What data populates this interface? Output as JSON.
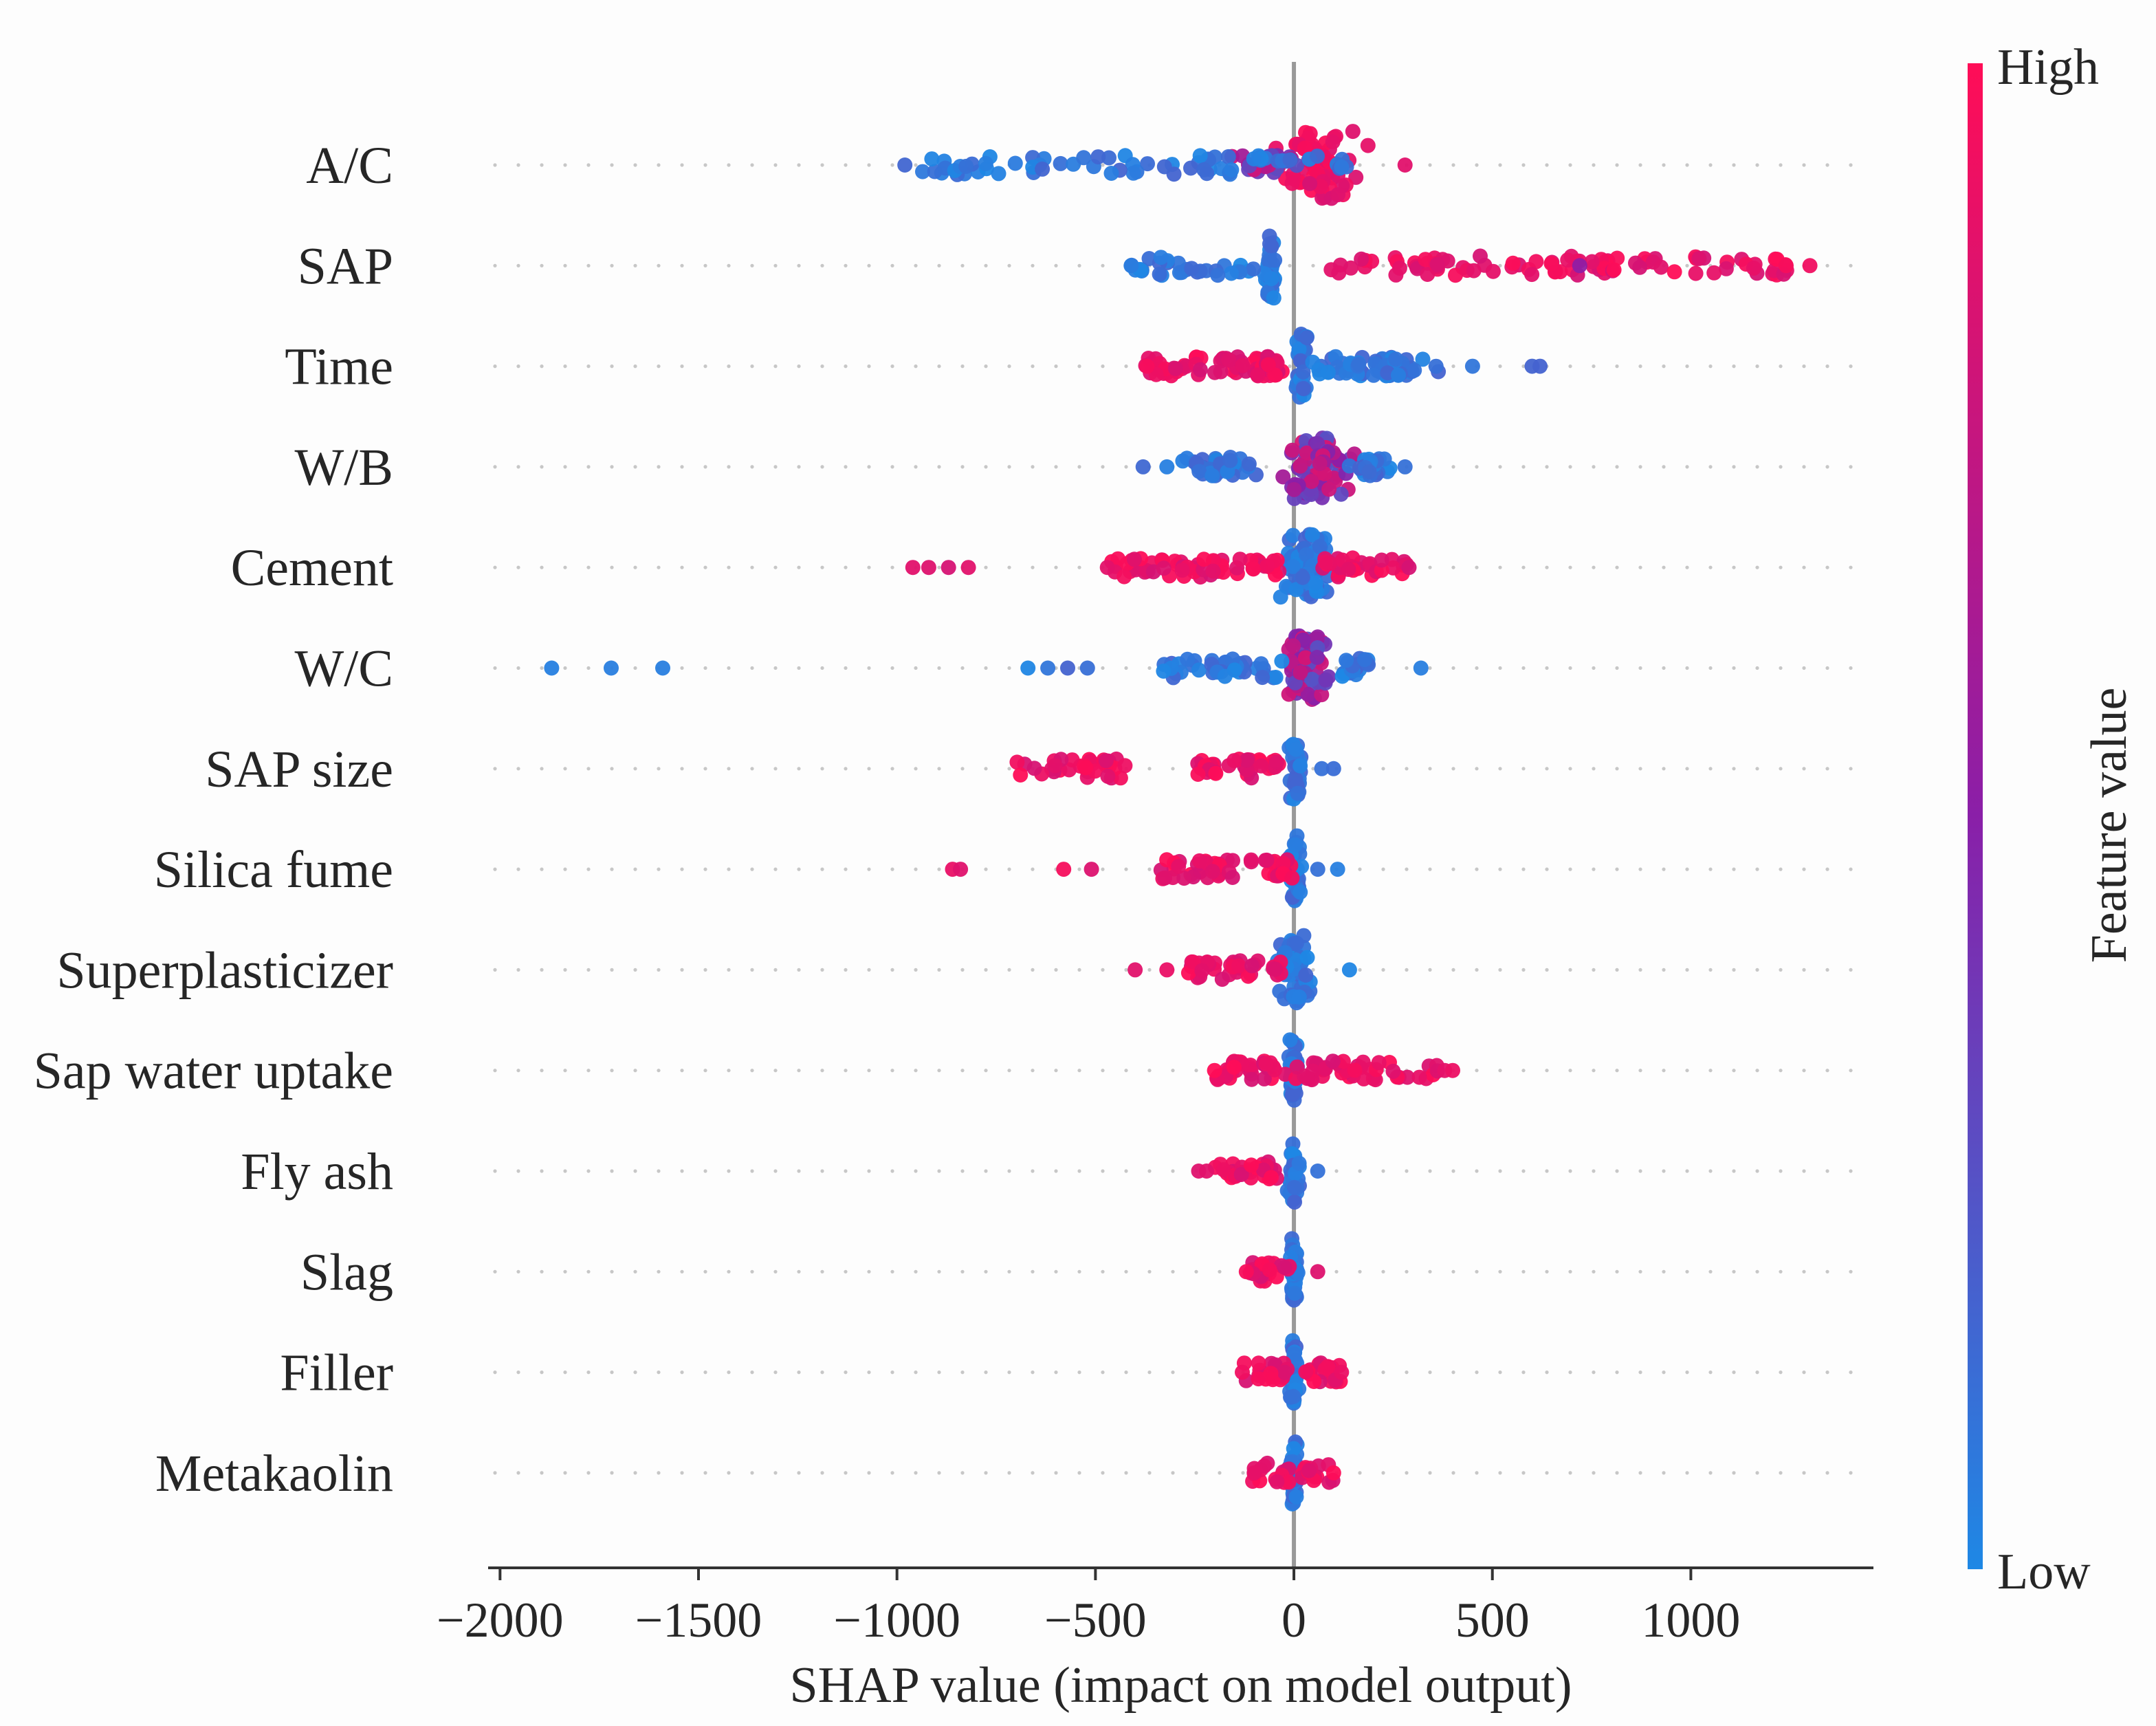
{
  "chart_data": {
    "type": "scatter",
    "subtype": "shap-beeswarm",
    "title": "",
    "xlabel": "SHAP value (impact on model output)",
    "xlim": [
      -2030,
      1460
    ],
    "xticks": [
      -2000,
      -1500,
      -1000,
      -500,
      0,
      500,
      1000
    ],
    "xtick_labels": [
      "−2000",
      "−1500",
      "−1000",
      "−500",
      "0",
      "500",
      "1000"
    ],
    "colorbar": {
      "title": "Feature value",
      "high_label": "High",
      "low_label": "Low",
      "low_color": "#1e88e5",
      "mid_color": "#8a1fa8",
      "high_color": "#ff0d57"
    },
    "features": [
      {
        "name": "A/C",
        "clusters": [
          {
            "center": 60,
            "spread": 170,
            "n": 70,
            "color": "high",
            "wide": true
          },
          {
            "center": -80,
            "spread": 120,
            "n": 30,
            "color": "mix"
          },
          {
            "center": -400,
            "spread": 540,
            "n": 70,
            "color": "low",
            "flat": true
          }
        ],
        "points": [
          {
            "x": -980,
            "c": "low"
          },
          {
            "x": 280,
            "c": "high"
          }
        ]
      },
      {
        "name": "SAP",
        "clusters": [
          {
            "center": -60,
            "spread": 20,
            "n": 40,
            "color": "low",
            "wide": true
          },
          {
            "center": -250,
            "spread": 160,
            "n": 30,
            "color": "low",
            "flat": true
          },
          {
            "center": 400,
            "spread": 340,
            "n": 50,
            "color": "high",
            "flat": true
          },
          {
            "center": 1000,
            "spread": 260,
            "n": 40,
            "color": "high",
            "flat": true
          }
        ],
        "points": [
          {
            "x": -410,
            "c": "low"
          },
          {
            "x": 720,
            "c": "mix"
          },
          {
            "x": 1240,
            "c": "high"
          },
          {
            "x": 1300,
            "c": "high"
          }
        ]
      },
      {
        "name": "Time",
        "clusters": [
          {
            "center": -230,
            "spread": 150,
            "n": 50,
            "color": "high",
            "flat": true
          },
          {
            "center": -60,
            "spread": 50,
            "n": 25,
            "color": "high"
          },
          {
            "center": 20,
            "spread": 20,
            "n": 30,
            "color": "low",
            "wide": true
          },
          {
            "center": 200,
            "spread": 220,
            "n": 60,
            "color": "low"
          }
        ],
        "points": [
          {
            "x": -370,
            "c": "high"
          },
          {
            "x": 450,
            "c": "low"
          },
          {
            "x": 600,
            "c": "low"
          },
          {
            "x": 620,
            "c": "low"
          }
        ]
      },
      {
        "name": "W/B",
        "clusters": [
          {
            "center": 50,
            "spread": 120,
            "n": 80,
            "color": "mix",
            "wide": true
          },
          {
            "center": -200,
            "spread": 130,
            "n": 40,
            "color": "low"
          },
          {
            "center": 200,
            "spread": 80,
            "n": 25,
            "color": "low"
          }
        ],
        "points": [
          {
            "x": -380,
            "c": "low"
          },
          {
            "x": -320,
            "c": "low"
          },
          {
            "x": 280,
            "c": "low"
          }
        ]
      },
      {
        "name": "Cement",
        "clusters": [
          {
            "center": 30,
            "spread": 80,
            "n": 80,
            "color": "low",
            "wide": true
          },
          {
            "center": -250,
            "spread": 220,
            "n": 60,
            "color": "high",
            "flat": true
          },
          {
            "center": 180,
            "spread": 110,
            "n": 30,
            "color": "high",
            "flat": true
          }
        ],
        "points": [
          {
            "x": -960,
            "c": "high"
          },
          {
            "x": -920,
            "c": "high"
          },
          {
            "x": -870,
            "c": "high"
          },
          {
            "x": -820,
            "c": "high"
          },
          {
            "x": -470,
            "c": "high"
          },
          {
            "x": 290,
            "c": "high"
          }
        ]
      },
      {
        "name": "W/C",
        "clusters": [
          {
            "center": 30,
            "spread": 80,
            "n": 70,
            "color": "mix",
            "wide": true
          },
          {
            "center": -180,
            "spread": 150,
            "n": 40,
            "color": "low",
            "flat": true
          },
          {
            "center": 150,
            "spread": 70,
            "n": 20,
            "color": "low"
          }
        ],
        "points": [
          {
            "x": -1870,
            "c": "low"
          },
          {
            "x": -1720,
            "c": "low"
          },
          {
            "x": -1590,
            "c": "low"
          },
          {
            "x": -670,
            "c": "low"
          },
          {
            "x": -620,
            "c": "low"
          },
          {
            "x": -570,
            "c": "low"
          },
          {
            "x": -520,
            "c": "low"
          },
          {
            "x": 320,
            "c": "low"
          }
        ]
      },
      {
        "name": "SAP size",
        "clusters": [
          {
            "center": 5,
            "spread": 20,
            "n": 35,
            "color": "low",
            "wide": true
          },
          {
            "center": -140,
            "spread": 110,
            "n": 40,
            "color": "high",
            "flat": true
          },
          {
            "center": -560,
            "spread": 140,
            "n": 35,
            "color": "high",
            "flat": true
          }
        ],
        "points": [
          {
            "x": 70,
            "c": "low"
          },
          {
            "x": 100,
            "c": "low"
          }
        ]
      },
      {
        "name": "Silica fume",
        "clusters": [
          {
            "center": 5,
            "spread": 25,
            "n": 35,
            "color": "low",
            "wide": true
          },
          {
            "center": -180,
            "spread": 180,
            "n": 50,
            "color": "high",
            "flat": true
          }
        ],
        "points": [
          {
            "x": -860,
            "c": "high"
          },
          {
            "x": -840,
            "c": "high"
          },
          {
            "x": -580,
            "c": "high"
          },
          {
            "x": -510,
            "c": "high"
          },
          {
            "x": 60,
            "c": "low"
          },
          {
            "x": 110,
            "c": "low"
          }
        ]
      },
      {
        "name": "Superplasticizer",
        "clusters": [
          {
            "center": 0,
            "spread": 60,
            "n": 60,
            "color": "low",
            "wide": true
          },
          {
            "center": -150,
            "spread": 120,
            "n": 35,
            "color": "high",
            "flat": true
          }
        ],
        "points": [
          {
            "x": -400,
            "c": "high"
          },
          {
            "x": -320,
            "c": "high"
          },
          {
            "x": 140,
            "c": "low"
          }
        ]
      },
      {
        "name": "Sap water uptake",
        "clusters": [
          {
            "center": -2,
            "spread": 15,
            "n": 35,
            "color": "low",
            "wide": true
          },
          {
            "center": -110,
            "spread": 90,
            "n": 35,
            "color": "high",
            "flat": true
          },
          {
            "center": 180,
            "spread": 190,
            "n": 45,
            "color": "high",
            "flat": true
          }
        ],
        "points": [
          {
            "x": -200,
            "c": "high"
          },
          {
            "x": 380,
            "c": "high"
          },
          {
            "x": 400,
            "c": "high"
          }
        ]
      },
      {
        "name": "Fly ash",
        "clusters": [
          {
            "center": 0,
            "spread": 20,
            "n": 35,
            "color": "low",
            "wide": true
          },
          {
            "center": -120,
            "spread": 80,
            "n": 30,
            "color": "high",
            "flat": true
          }
        ],
        "points": [
          {
            "x": -240,
            "c": "high"
          },
          {
            "x": -220,
            "c": "high"
          },
          {
            "x": 60,
            "c": "low"
          }
        ]
      },
      {
        "name": "Slag",
        "clusters": [
          {
            "center": 0,
            "spread": 15,
            "n": 35,
            "color": "low",
            "wide": true
          },
          {
            "center": -60,
            "spread": 50,
            "n": 20,
            "color": "high",
            "flat": true
          }
        ],
        "points": [
          {
            "x": -120,
            "c": "high"
          },
          {
            "x": 60,
            "c": "high"
          }
        ]
      },
      {
        "name": "Filler",
        "clusters": [
          {
            "center": 0,
            "spread": 15,
            "n": 35,
            "color": "low",
            "wide": true
          },
          {
            "center": -70,
            "spread": 60,
            "n": 20,
            "color": "high",
            "flat": true
          },
          {
            "center": 70,
            "spread": 50,
            "n": 20,
            "color": "high",
            "flat": true
          }
        ],
        "points": [
          {
            "x": -130,
            "c": "high"
          },
          {
            "x": 120,
            "c": "high"
          }
        ]
      },
      {
        "name": "Metakaolin",
        "clusters": [
          {
            "center": 0,
            "spread": 15,
            "n": 35,
            "color": "low",
            "wide": true
          },
          {
            "center": -60,
            "spread": 50,
            "n": 15,
            "color": "high",
            "flat": true
          },
          {
            "center": 60,
            "spread": 40,
            "n": 15,
            "color": "high",
            "flat": true
          }
        ],
        "points": [
          {
            "x": -100,
            "c": "high"
          },
          {
            "x": 100,
            "c": "high"
          }
        ]
      }
    ]
  }
}
